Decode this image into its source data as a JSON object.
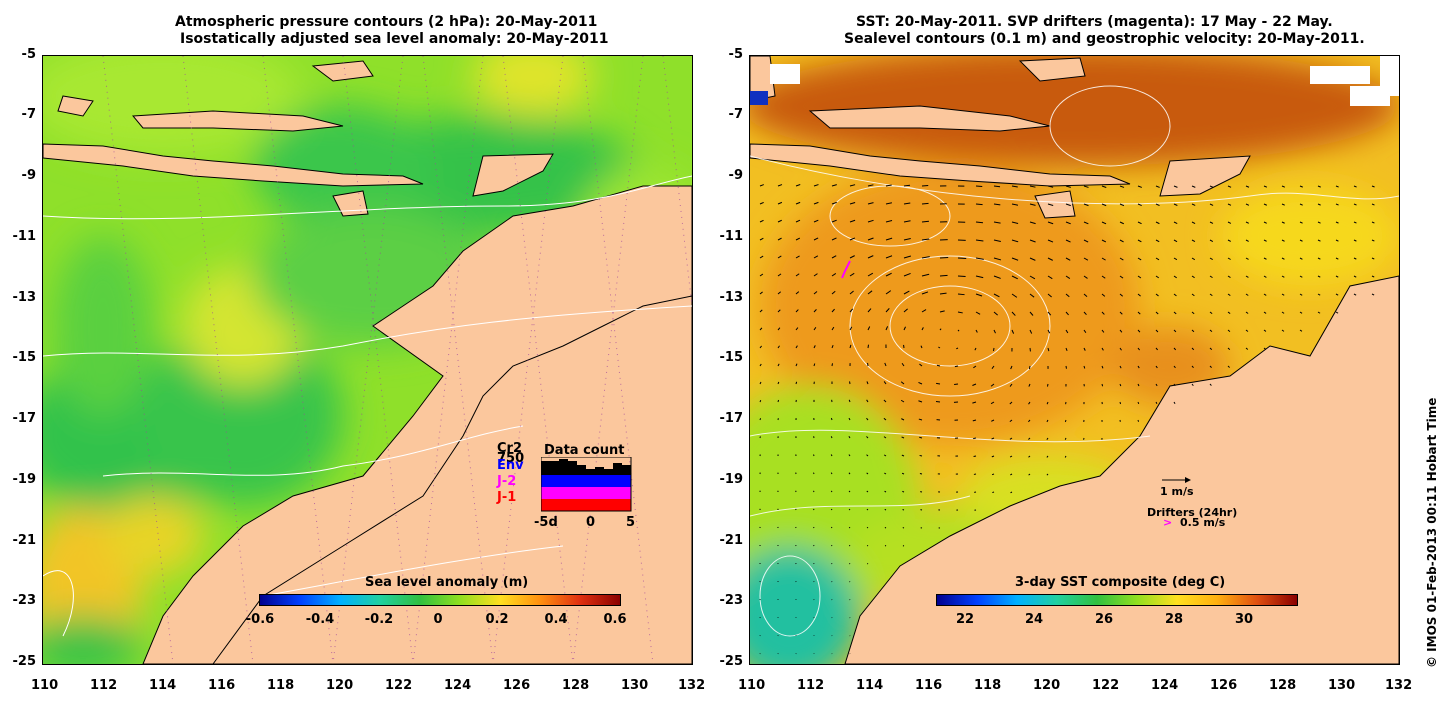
{
  "left_map": {
    "title_line1": "Atmospheric pressure contours (2 hPa): 20-May-2011",
    "title_line2": "Isostatically adjusted sea level anomaly: 20-May-2011",
    "y_ticks": [
      "-5",
      "-7",
      "-9",
      "-11",
      "-13",
      "-15",
      "-17",
      "-19",
      "-21",
      "-23",
      "-25"
    ],
    "x_ticks": [
      "110",
      "112",
      "114",
      "116",
      "118",
      "120",
      "122",
      "124",
      "126",
      "128",
      "130",
      "132"
    ],
    "colorbar": {
      "title": "Sea level anomaly (m)",
      "ticks": [
        "-0.6",
        "-0.4",
        "-0.2",
        "0",
        "0.2",
        "0.4",
        "0.6"
      ],
      "range": [
        -0.6,
        0.6
      ]
    },
    "data_count": {
      "title": "Data count",
      "satellites": [
        "Cr2",
        "Env",
        "J-2",
        "J-1"
      ],
      "satellite_colors": [
        "#000000",
        "#0000ff",
        "#ff00ff",
        "#ff0000"
      ],
      "max_label": "750",
      "x_ticks": [
        "-5d",
        "0",
        "5"
      ]
    }
  },
  "right_map": {
    "title_line1": "SST: 20-May-2011. SVP drifters (magenta): 17 May - 22 May.",
    "title_line2": "Sealevel contours (0.1 m) and geostrophic velocity: 20-May-2011.",
    "y_ticks": [
      "-5",
      "-7",
      "-9",
      "-11",
      "-13",
      "-15",
      "-17",
      "-19",
      "-21",
      "-23",
      "-25"
    ],
    "x_ticks": [
      "110",
      "112",
      "114",
      "116",
      "118",
      "120",
      "122",
      "124",
      "126",
      "128",
      "130",
      "132"
    ],
    "velocity_scale_label": "1 m/s",
    "drifters_label": "Drifters (24hr)",
    "drifter_speed_label": "0.5 m/s",
    "colorbar": {
      "title": "3-day SST composite (deg C)",
      "ticks": [
        "22",
        "24",
        "26",
        "28",
        "30"
      ],
      "range": [
        21,
        31.8
      ]
    }
  },
  "credit": "© IMOS 01-Feb-2013 00:11 Hobart Time",
  "colors": {
    "land": "#fbc79d",
    "magenta": "#ff00ff"
  }
}
